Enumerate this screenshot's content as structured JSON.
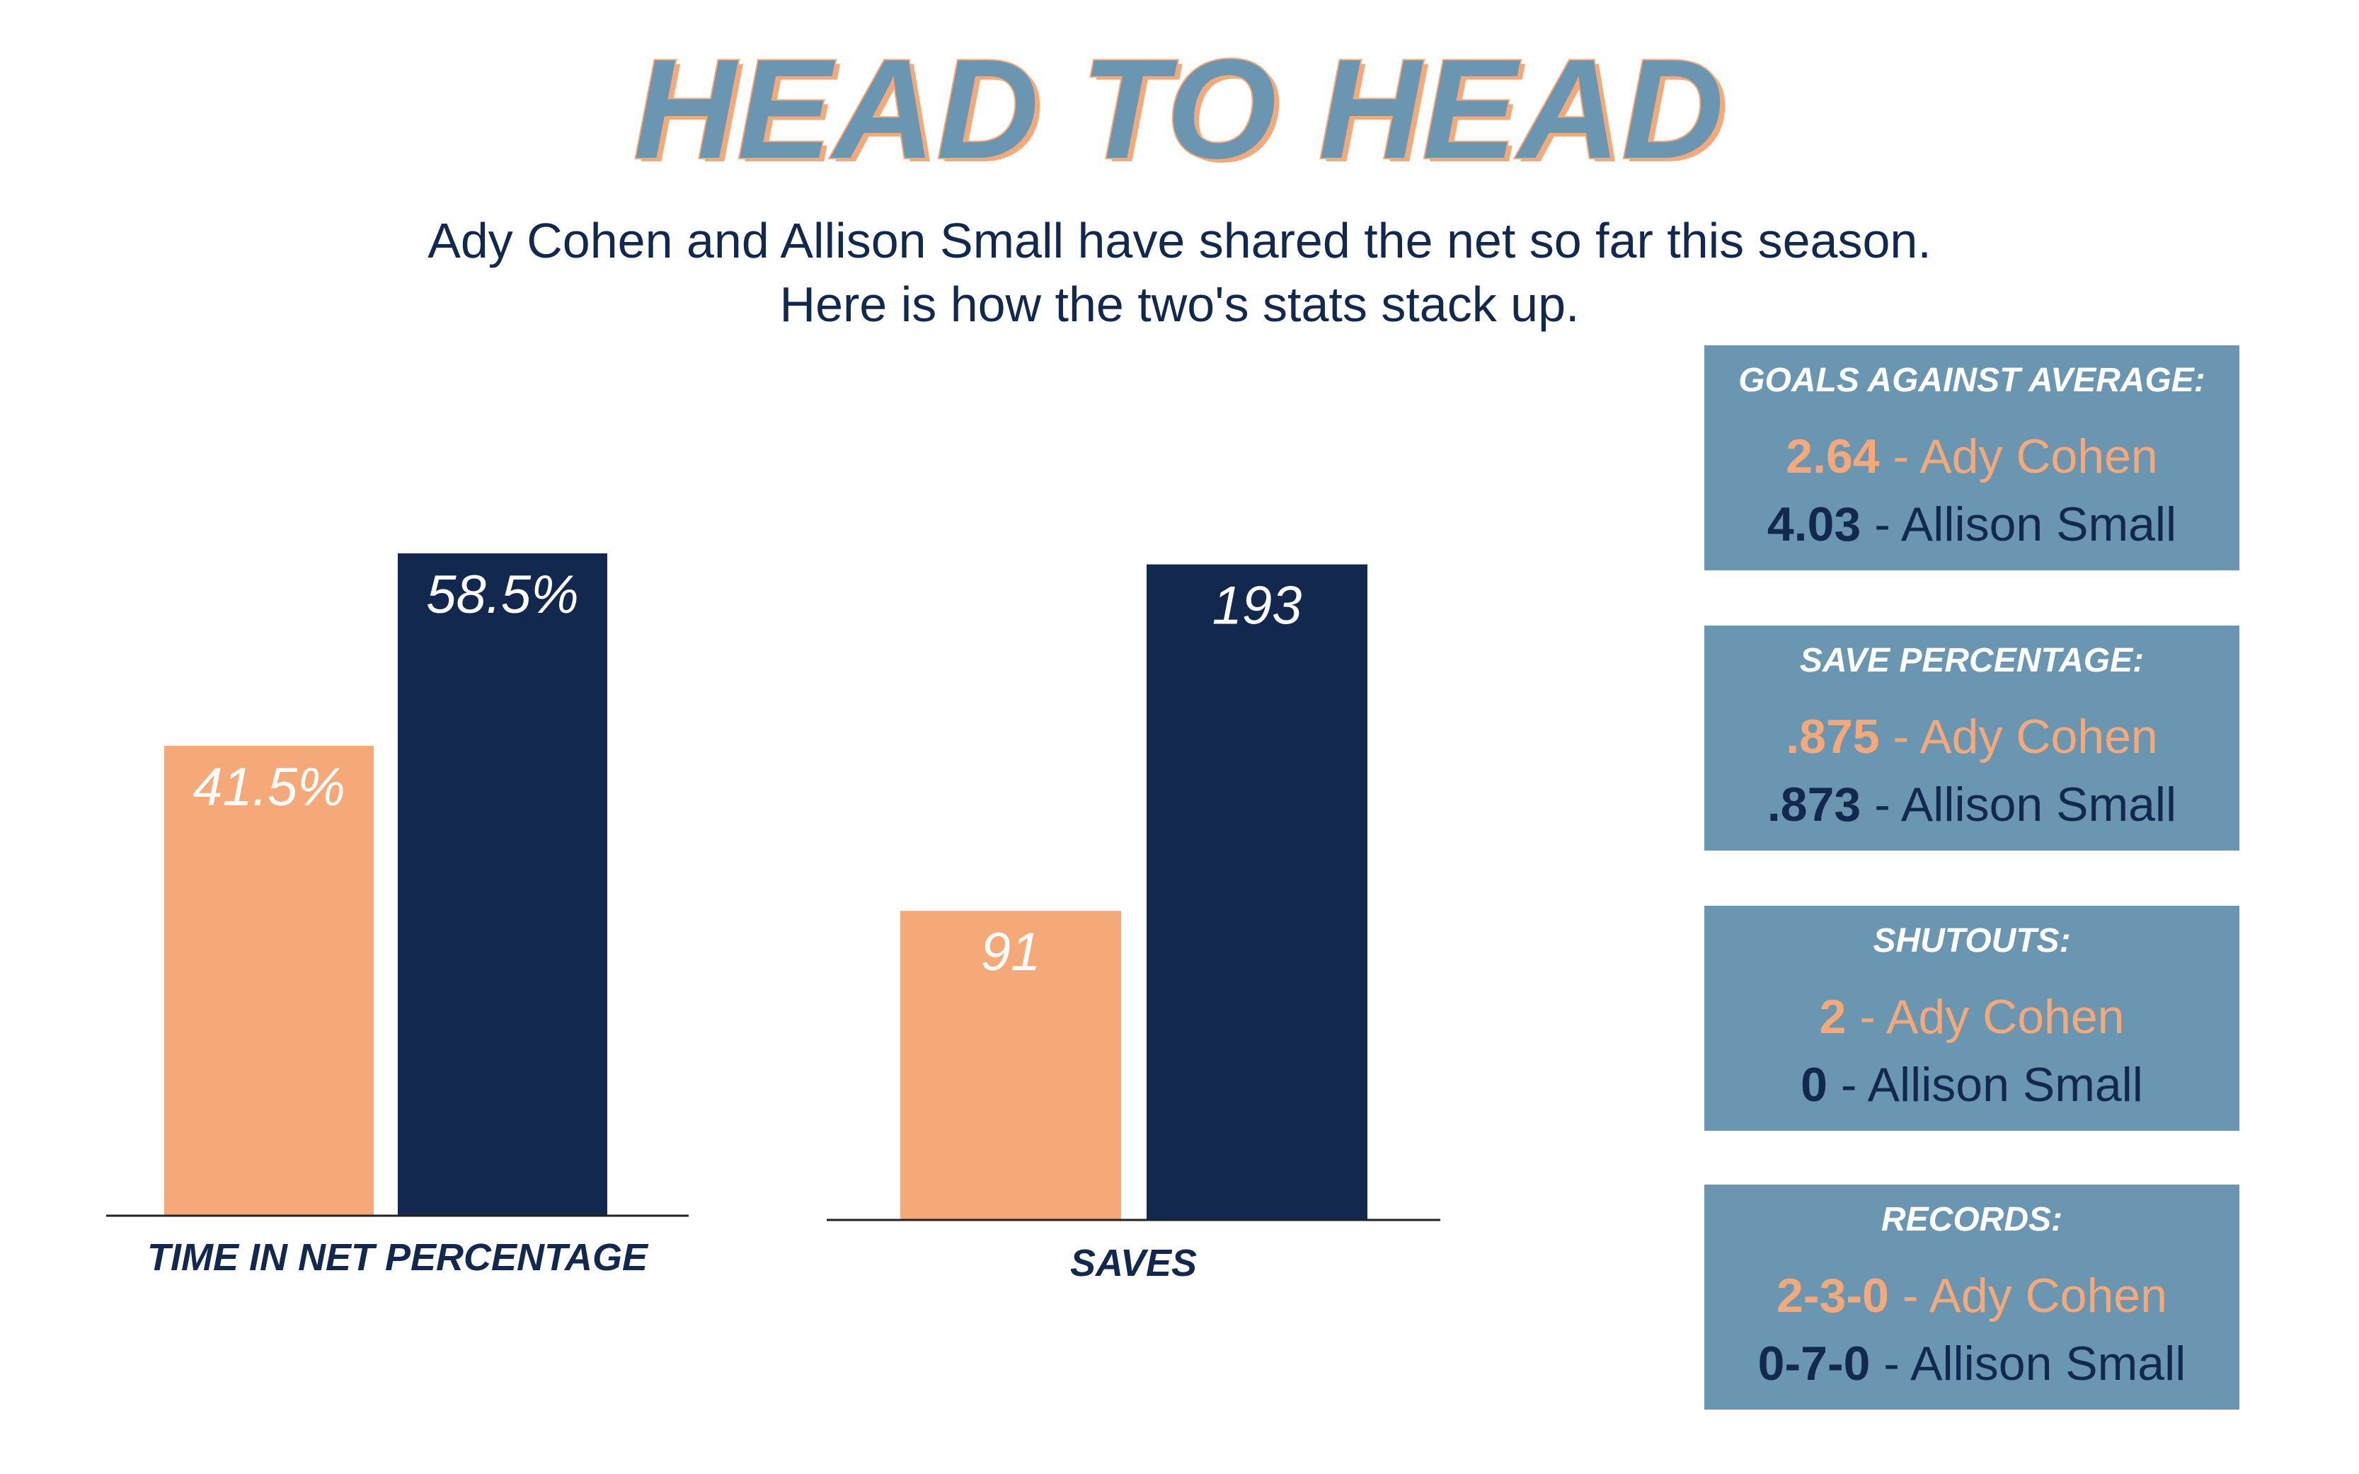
{
  "header": {
    "title": "HEAD TO HEAD",
    "subtitle_line1": "Ady Cohen and Allison Small have shared the net so far this season.",
    "subtitle_line2": "Here is how the two's stats stack up."
  },
  "colors": {
    "ady_cohen": "#f6a978",
    "allison_small": "#12284f",
    "stat_box": "#6b96b2"
  },
  "chart_data": [
    {
      "type": "bar",
      "xlabel": "TIME IN NET PERCENTAGE",
      "categories": [
        "Ady Cohen",
        "Allison Small"
      ],
      "values": [
        41.5,
        58.5
      ],
      "value_labels": [
        "41.5%",
        "58.5%"
      ],
      "ylim": [
        0,
        60
      ],
      "grid": false
    },
    {
      "type": "bar",
      "xlabel": "SAVES",
      "categories": [
        "Ady Cohen",
        "Allison Small"
      ],
      "values": [
        91,
        193
      ],
      "value_labels": [
        "91",
        "193"
      ],
      "ylim": [
        0,
        200
      ],
      "grid": false
    }
  ],
  "stats": [
    {
      "heading": "GOALS AGAINST AVERAGE:",
      "ady_value": "2.64",
      "ady_name": " - Ady Cohen",
      "allison_value": "4.03",
      "allison_name": " - Allison Small"
    },
    {
      "heading": "SAVE PERCENTAGE:",
      "ady_value": ".875",
      "ady_name": " - Ady Cohen",
      "allison_value": ".873",
      "allison_name": " - Allison Small"
    },
    {
      "heading": "SHUTOUTS:",
      "ady_value": "2",
      "ady_name": " - Ady Cohen",
      "allison_value": "0",
      "allison_name": " - Allison Small"
    },
    {
      "heading": "RECORDS:",
      "ady_value": "2-3-0",
      "ady_name": " - Ady Cohen",
      "allison_value": "0-7-0",
      "allison_name": " - Allison Small"
    }
  ]
}
